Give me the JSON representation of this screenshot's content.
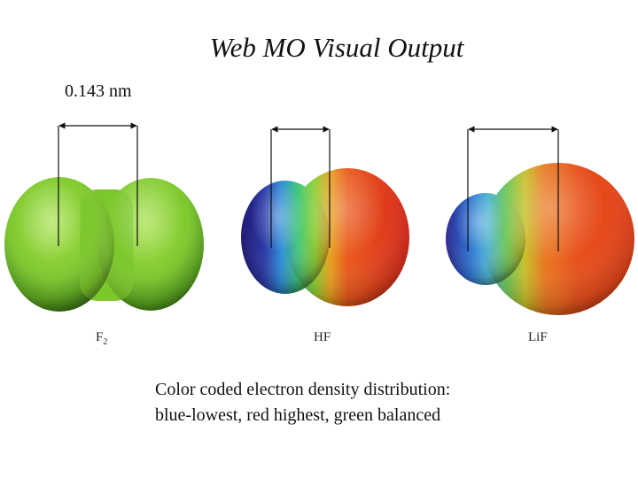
{
  "title": "Web MO Visual Output",
  "bond_length_label": "0.143 nm",
  "molecules": [
    {
      "label_main": "F",
      "label_sub": "2"
    },
    {
      "label_main": "HF",
      "label_sub": ""
    },
    {
      "label_main": "LiF",
      "label_sub": ""
    }
  ],
  "caption": {
    "line1": "Color coded electron density distribution:",
    "line2": "blue-lowest, red highest, green balanced"
  },
  "colors": {
    "blue": "#2a2a8c",
    "green": "#6cc02a",
    "red": "#e8321e"
  }
}
